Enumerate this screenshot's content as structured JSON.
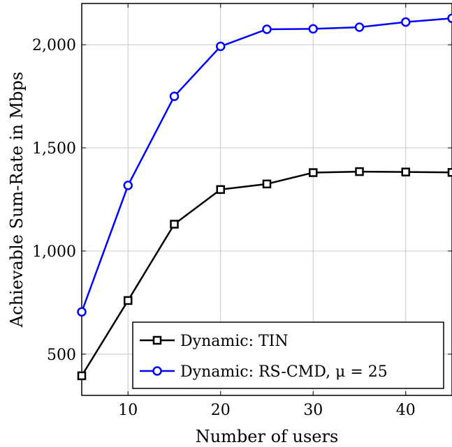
{
  "chart_data": {
    "type": "line",
    "xlabel": "Number of users",
    "ylabel": "Achievable Sum-Rate in Mbps",
    "xlim": [
      5,
      45
    ],
    "ylim": [
      300,
      2200
    ],
    "x_ticks": [
      10,
      20,
      30,
      40
    ],
    "x_tick_labels": [
      "10",
      "20",
      "30",
      "40"
    ],
    "y_ticks": [
      500,
      1000,
      1500,
      2000
    ],
    "y_tick_labels": [
      "500",
      "1,000",
      "1,500",
      "2,000"
    ],
    "grid": true,
    "legend_position": "bottom-right",
    "x": [
      5,
      10,
      15,
      20,
      25,
      30,
      35,
      40,
      45
    ],
    "series": [
      {
        "name": "Dynamic: TIN",
        "marker": "square",
        "color": "#000000",
        "values": [
          395,
          760,
          1130,
          1298,
          1325,
          1380,
          1385,
          1383,
          1381
        ]
      },
      {
        "name": "Dynamic: RS-CMD, μ = 25",
        "marker": "circle",
        "color": "#0000ff",
        "values": [
          705,
          1318,
          1750,
          1992,
          2075,
          2077,
          2085,
          2110,
          2128
        ]
      }
    ]
  }
}
